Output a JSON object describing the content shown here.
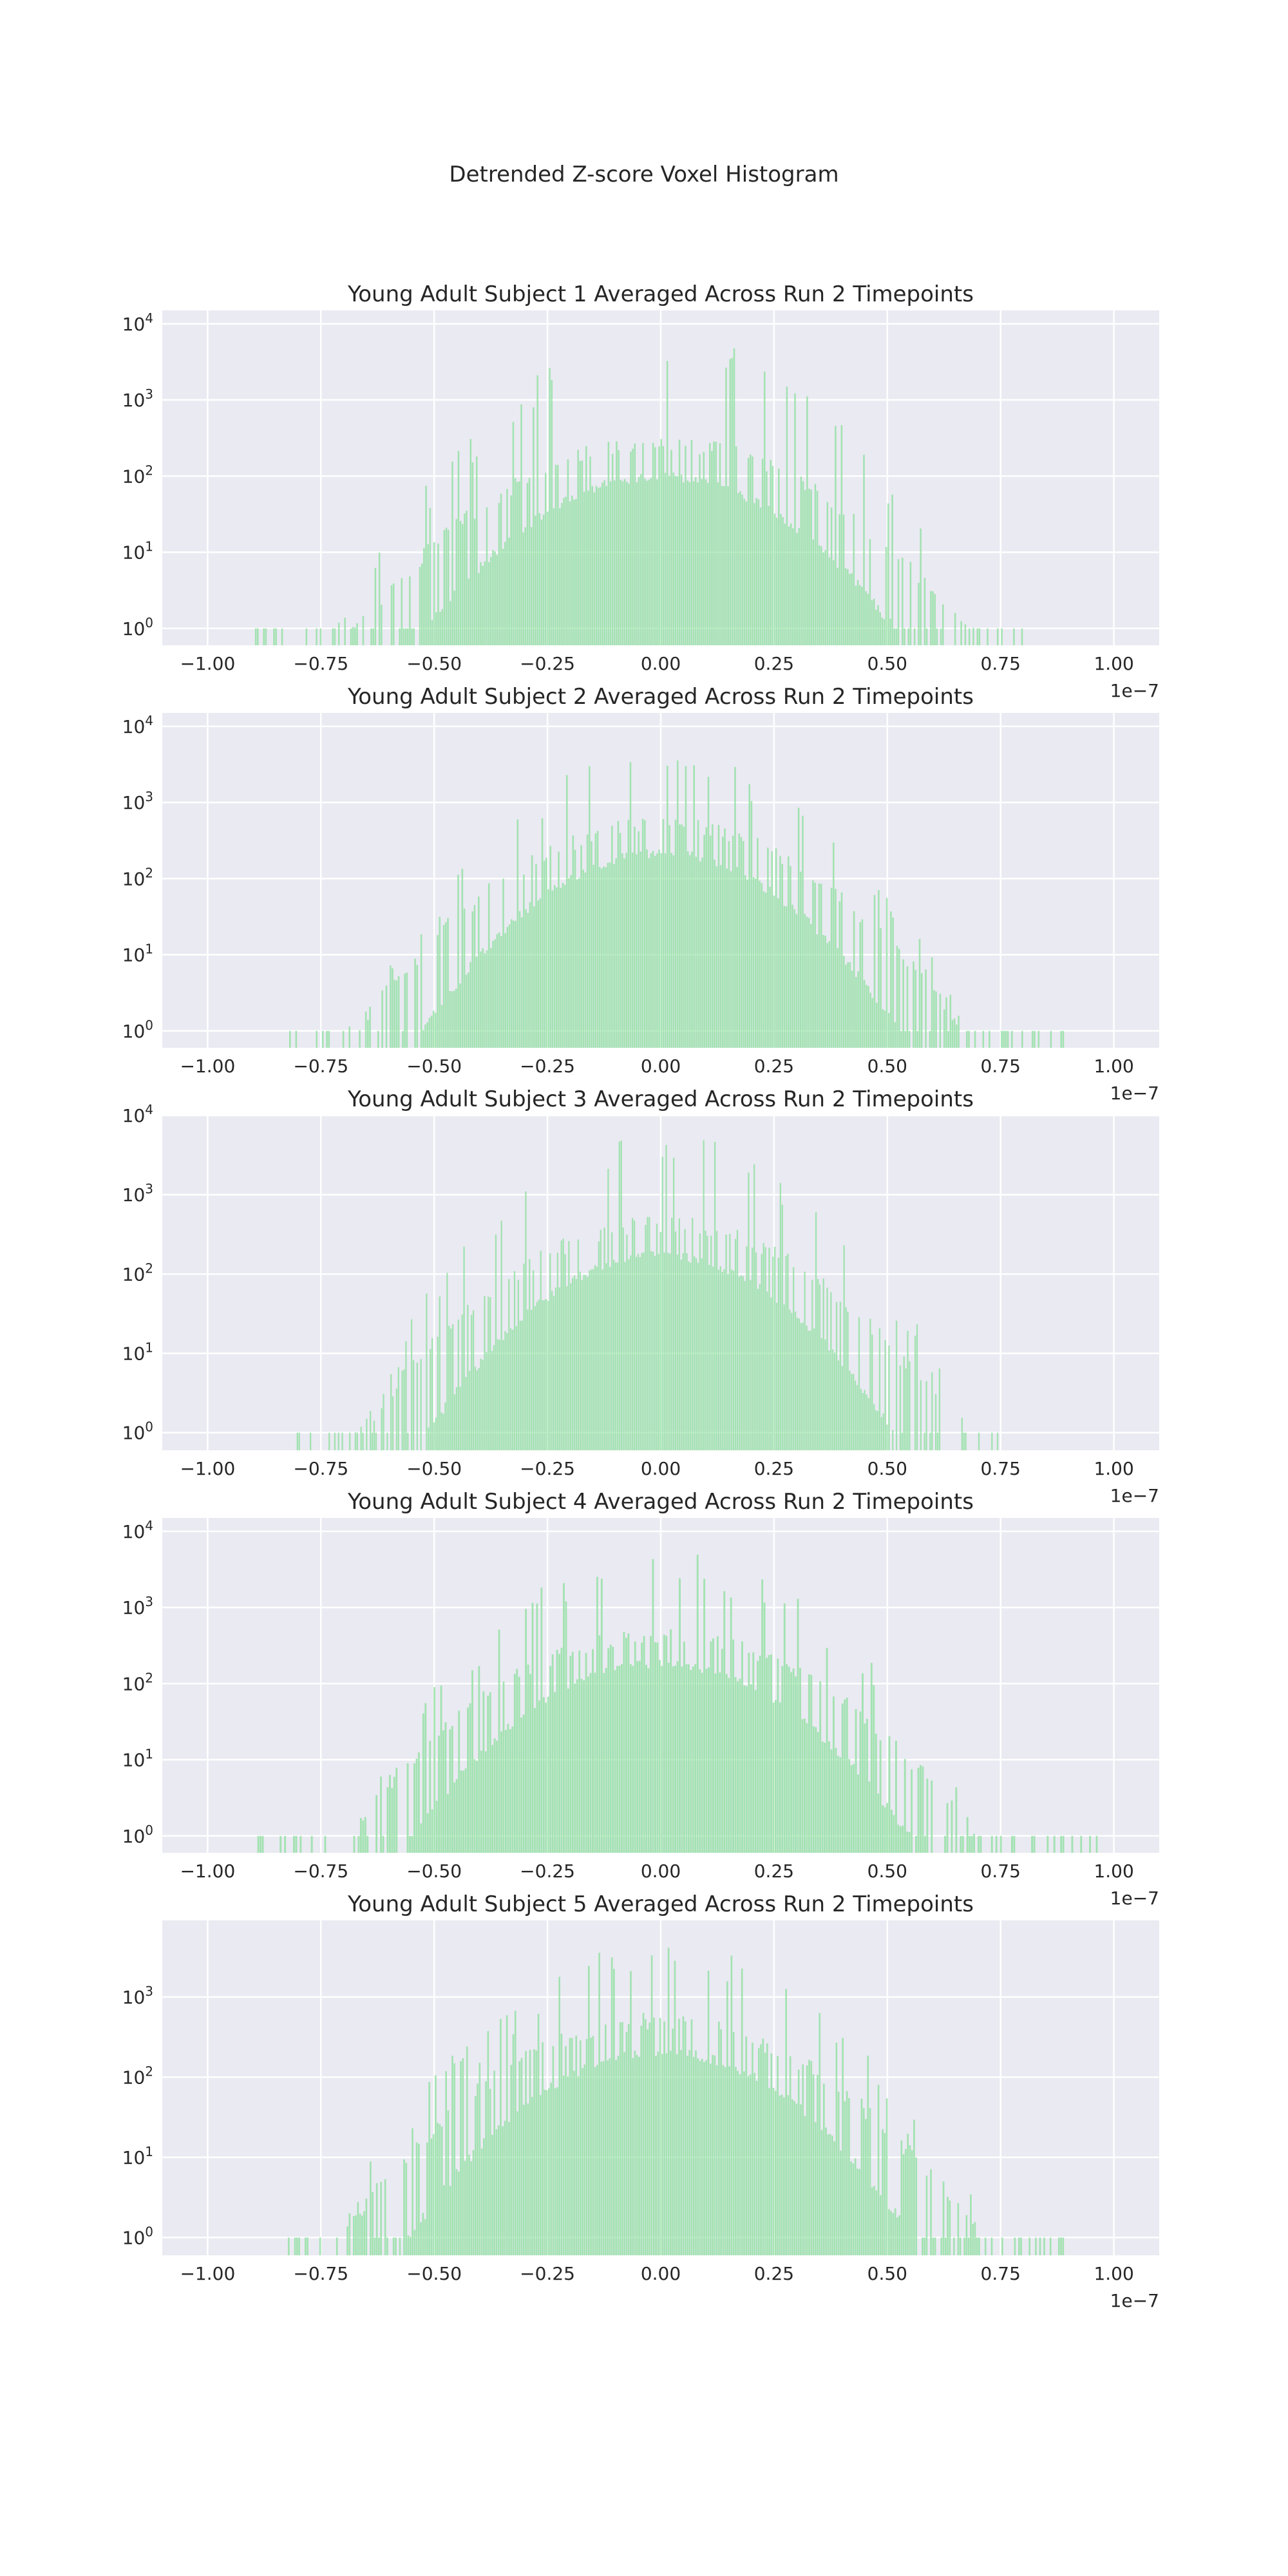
{
  "figure": {
    "suptitle": "Detrended Z-score Voxel Histogram"
  },
  "style": {
    "panel_bg": "#eaeaf2",
    "grid": "#ffffff",
    "bar": "#90e0a0",
    "text": "#262626"
  },
  "chart_data": [
    {
      "type": "bar",
      "title": "Young Adult Subject 1 Averaged Across Run 2 Timepoints",
      "xscale": "linear",
      "yscale": "log",
      "xlim": [
        -1.1e-07,
        1.1e-07
      ],
      "ylim": [
        0.6,
        15000
      ],
      "xticks": [
        -1e-07,
        -7.5e-08,
        -5e-08,
        -2.5e-08,
        0,
        2.5e-08,
        5e-08,
        7.5e-08,
        1e-07
      ],
      "xtick_labels": [
        "−1.00",
        "−0.75",
        "−0.50",
        "−0.25",
        "0.00",
        "0.25",
        "0.50",
        "0.75",
        "1.00"
      ],
      "yticks": [
        1,
        10,
        100,
        1000,
        10000
      ],
      "offset_label": "1e−7",
      "grid": true,
      "bins": {
        "range": [
          -9e-08,
          8e-08
        ],
        "count": 380
      },
      "envelopes": [
        {
          "peak": 8000,
          "sigma": 1.7e-08
        },
        {
          "peak": 350,
          "sigma": 2e-08
        },
        {
          "peak": 115,
          "sigma": 1.7e-08
        }
      ]
    },
    {
      "type": "bar",
      "title": "Young Adult Subject 2 Averaged Across Run 2 Timepoints",
      "xscale": "linear",
      "yscale": "log",
      "xlim": [
        -1.1e-07,
        1.1e-07
      ],
      "ylim": [
        0.6,
        15000
      ],
      "xticks": [
        -1e-07,
        -7.5e-08,
        -5e-08,
        -2.5e-08,
        0,
        2.5e-08,
        5e-08,
        7.5e-08,
        1e-07
      ],
      "xtick_labels": [
        "−1.00",
        "−0.75",
        "−0.50",
        "−0.25",
        "0.00",
        "0.25",
        "0.50",
        "0.75",
        "1.00"
      ],
      "yticks": [
        1,
        10,
        100,
        1000,
        10000
      ],
      "offset_label": "1e−7",
      "grid": true,
      "bins": {
        "range": [
          -8.2e-08,
          9e-08
        ],
        "count": 380
      },
      "envelopes": [
        {
          "peak": 5000,
          "sigma": 1.7e-08
        },
        {
          "peak": 650,
          "sigma": 1.9e-08
        },
        {
          "peak": 250,
          "sigma": 1.6e-08
        }
      ]
    },
    {
      "type": "bar",
      "title": "Young Adult Subject 3 Averaged Across Run 2 Timepoints",
      "xscale": "linear",
      "yscale": "log",
      "xlim": [
        -1.1e-07,
        1.1e-07
      ],
      "ylim": [
        0.6,
        10000
      ],
      "xticks": [
        -1e-07,
        -7.5e-08,
        -5e-08,
        -2.5e-08,
        0,
        2.5e-08,
        5e-08,
        7.5e-08,
        1e-07
      ],
      "xtick_labels": [
        "−1.00",
        "−0.75",
        "−0.50",
        "−0.25",
        "0.00",
        "0.25",
        "0.50",
        "0.75",
        "1.00"
      ],
      "yticks": [
        1,
        10,
        100,
        1000,
        10000
      ],
      "offset_label": "1e−7",
      "grid": true,
      "bins": {
        "range": [
          -8.2e-08,
          7.5e-08
        ],
        "count": 380
      },
      "envelopes": [
        {
          "peak": 6000,
          "sigma": 1.7e-08
        },
        {
          "peak": 550,
          "sigma": 1.9e-08
        },
        {
          "peak": 200,
          "sigma": 1.6e-08
        }
      ]
    },
    {
      "type": "bar",
      "title": "Young Adult Subject 4 Averaged Across Run 2 Timepoints",
      "xscale": "linear",
      "yscale": "log",
      "xlim": [
        -1.1e-07,
        1.1e-07
      ],
      "ylim": [
        0.6,
        15000
      ],
      "xticks": [
        -1e-07,
        -7.5e-08,
        -5e-08,
        -2.5e-08,
        0,
        2.5e-08,
        5e-08,
        7.5e-08,
        1e-07
      ],
      "xtick_labels": [
        "−1.00",
        "−0.75",
        "−0.50",
        "−0.25",
        "0.00",
        "0.25",
        "0.50",
        "0.75",
        "1.00"
      ],
      "yticks": [
        1,
        10,
        100,
        1000,
        10000
      ],
      "offset_label": "1e−7",
      "grid": true,
      "bins": {
        "range": [
          -9e-08,
          9.7e-08
        ],
        "count": 380
      },
      "envelopes": [
        {
          "peak": 5500,
          "sigma": 1.8e-08
        },
        {
          "peak": 550,
          "sigma": 2e-08
        },
        {
          "peak": 210,
          "sigma": 1.7e-08
        }
      ]
    },
    {
      "type": "bar",
      "title": "Young Adult Subject 5 Averaged Across Run 2 Timepoints",
      "xscale": "linear",
      "yscale": "log",
      "xlim": [
        -1.1e-07,
        1.1e-07
      ],
      "ylim": [
        0.6,
        9000
      ],
      "xticks": [
        -1e-07,
        -7.5e-08,
        -5e-08,
        -2.5e-08,
        0,
        2.5e-08,
        5e-08,
        7.5e-08,
        1e-07
      ],
      "xtick_labels": [
        "−1.00",
        "−0.75",
        "−0.50",
        "−0.25",
        "0.00",
        "0.25",
        "0.50",
        "0.75",
        "1.00"
      ],
      "yticks": [
        1,
        10,
        100,
        1000
      ],
      "offset_label": "1e−7",
      "grid": true,
      "bins": {
        "range": [
          -8.6e-08,
          9e-08
        ],
        "count": 380
      },
      "envelopes": [
        {
          "peak": 5000,
          "sigma": 1.8e-08
        },
        {
          "peak": 650,
          "sigma": 2e-08
        },
        {
          "peak": 240,
          "sigma": 1.7e-08
        }
      ]
    }
  ]
}
